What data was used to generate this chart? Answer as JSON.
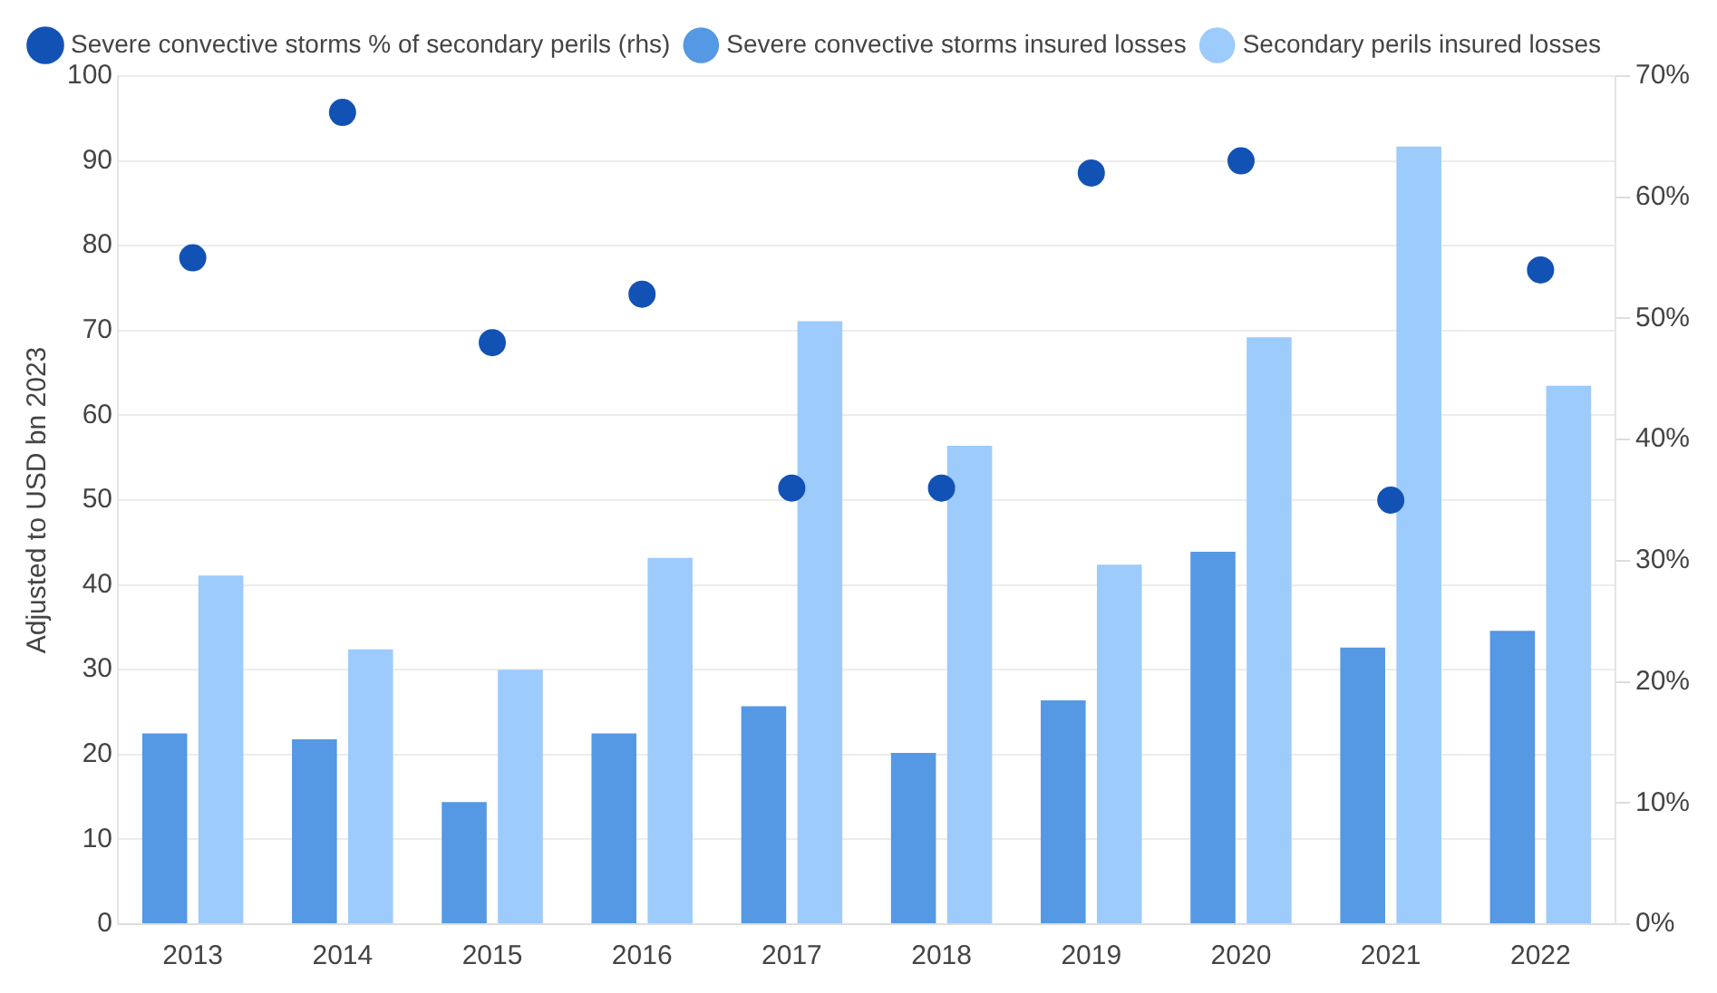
{
  "chart_data": {
    "type": "bar",
    "categories": [
      "2013",
      "2014",
      "2015",
      "2016",
      "2017",
      "2018",
      "2019",
      "2020",
      "2021",
      "2022"
    ],
    "series": [
      {
        "name": "Severe convective storms % of secondary perils (rhs)",
        "type": "scatter",
        "axis": "y2",
        "marker": "circle",
        "color": "#1352b5",
        "values": [
          55,
          67,
          48,
          52,
          36,
          36,
          62,
          63,
          35,
          54
        ]
      },
      {
        "name": "Severe convective storms insured losses",
        "color": "#5598e3",
        "values": [
          22.5,
          21.8,
          14.4,
          22.5,
          25.7,
          20.2,
          26.4,
          43.9,
          32.6,
          34.6
        ]
      },
      {
        "name": "Secondary perils insured losses",
        "color": "#9dcbfb",
        "values": [
          41.1,
          32.4,
          30.0,
          43.2,
          71.1,
          56.4,
          42.4,
          69.2,
          91.7,
          63.5
        ]
      }
    ],
    "ylabel": "Adjusted to USD bn 2023",
    "ylim": [
      0,
      100
    ],
    "yticks": [
      0,
      10,
      20,
      30,
      40,
      50,
      60,
      70,
      80,
      90,
      100
    ],
    "y2lim": [
      0,
      70
    ],
    "y2ticks": [
      {
        "value": 0,
        "label": "0%"
      },
      {
        "value": 10,
        "label": "10%"
      },
      {
        "value": 20,
        "label": "20%"
      },
      {
        "value": 30,
        "label": "30%"
      },
      {
        "value": 40,
        "label": "40%"
      },
      {
        "value": 50,
        "label": "50%"
      },
      {
        "value": 60,
        "label": "60%"
      },
      {
        "value": 70,
        "label": "70%"
      }
    ],
    "grid": "y",
    "legend": "top"
  }
}
